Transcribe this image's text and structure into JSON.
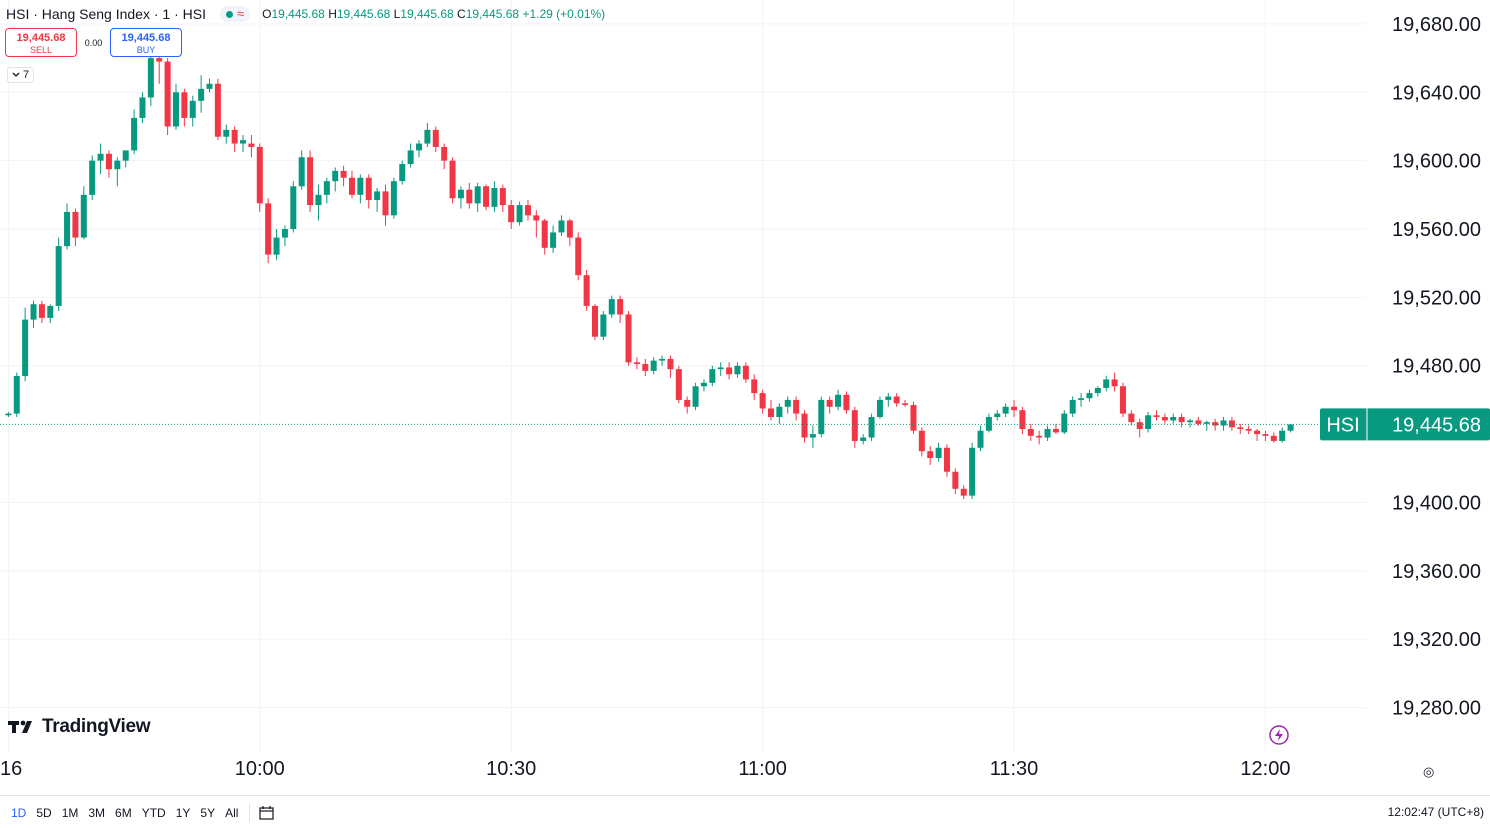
{
  "legend": {
    "title": "HSI · Hang Seng Index · 1 · HSI",
    "wave_icon": "≈",
    "ohlc": {
      "o_label": "O",
      "o": "19,445.68",
      "h_label": "H",
      "h": "19,445.68",
      "l_label": "L",
      "l": "19,445.68",
      "c_label": "C",
      "c": "19,445.68",
      "change": "+1.29 (+0.01%)"
    }
  },
  "trade": {
    "sell_price": "19,445.68",
    "sell_label": "SELL",
    "spread": "0.00",
    "buy_price": "19,445.68",
    "buy_label": "BUY"
  },
  "collapse": {
    "icon": "chevron-down-icon",
    "count": "7"
  },
  "logo": {
    "text": "TradingView"
  },
  "bottom": {
    "ranges": [
      "1D",
      "5D",
      "1M",
      "3M",
      "6M",
      "YTD",
      "1Y",
      "5Y",
      "All"
    ],
    "active_range": "1D",
    "clock": "12:02:47 (UTC+8)"
  },
  "colors": {
    "up": "#089981",
    "down": "#f23645",
    "accent": "#2962ff",
    "grid": "#f0f3fa"
  },
  "chart_data": {
    "type": "candlestick",
    "symbol": "HSI",
    "last_price_label": "19,445.68",
    "last_price": 19445.68,
    "y_ticks": [
      "19,680.00",
      "19,640.00",
      "19,600.00",
      "19,560.00",
      "19,520.00",
      "19,480.00",
      "19,400.00",
      "19,360.00",
      "19,320.00",
      "19,280.00"
    ],
    "y_tick_values": [
      19680,
      19640,
      19600,
      19560,
      19520,
      19480,
      19400,
      19360,
      19320,
      19280
    ],
    "x_ticks": [
      "16",
      "10:00",
      "10:30",
      "11:00",
      "11:30",
      "12:00"
    ],
    "x_tick_minutes": [
      0,
      30,
      60,
      90,
      120,
      150
    ],
    "ylim": [
      19254,
      19694
    ],
    "xlim": [
      -1,
      162
    ],
    "grid": true,
    "candles": [
      [
        0,
        19451,
        19453,
        19450,
        19452
      ],
      [
        1,
        19452,
        19476,
        19450,
        19474
      ],
      [
        2,
        19474,
        19514,
        19471,
        19507
      ],
      [
        3,
        19507,
        19518,
        19502,
        19516
      ],
      [
        4,
        19516,
        19518,
        19505,
        19508
      ],
      [
        5,
        19508,
        19516,
        19505,
        19515
      ],
      [
        6,
        19515,
        19555,
        19512,
        19550
      ],
      [
        7,
        19550,
        19575,
        19548,
        19570
      ],
      [
        8,
        19570,
        19572,
        19550,
        19555
      ],
      [
        9,
        19555,
        19585,
        19554,
        19580
      ],
      [
        10,
        19580,
        19603,
        19577,
        19600
      ],
      [
        11,
        19600,
        19610,
        19592,
        19604
      ],
      [
        12,
        19604,
        19606,
        19590,
        19595
      ],
      [
        13,
        19595,
        19602,
        19585,
        19600
      ],
      [
        14,
        19600,
        19606,
        19596,
        19606
      ],
      [
        15,
        19606,
        19630,
        19604,
        19625
      ],
      [
        16,
        19625,
        19640,
        19622,
        19637
      ],
      [
        17,
        19637,
        19664,
        19632,
        19660
      ],
      [
        18,
        19660,
        19668,
        19645,
        19658
      ],
      [
        19,
        19658,
        19660,
        19615,
        19620
      ],
      [
        20,
        19620,
        19645,
        19618,
        19640
      ],
      [
        21,
        19640,
        19642,
        19620,
        19625
      ],
      [
        22,
        19625,
        19638,
        19620,
        19635
      ],
      [
        23,
        19635,
        19650,
        19628,
        19642
      ],
      [
        24,
        19642,
        19648,
        19640,
        19645
      ],
      [
        25,
        19645,
        19648,
        19612,
        19614
      ],
      [
        26,
        19614,
        19621,
        19610,
        19618
      ],
      [
        27,
        19618,
        19620,
        19605,
        19610
      ],
      [
        28,
        19610,
        19615,
        19605,
        19612
      ],
      [
        29,
        19610,
        19615,
        19602,
        19608
      ],
      [
        30,
        19608,
        19610,
        19570,
        19575
      ],
      [
        31,
        19575,
        19578,
        19540,
        19545
      ],
      [
        32,
        19545,
        19560,
        19542,
        19555
      ],
      [
        33,
        19555,
        19562,
        19550,
        19560
      ],
      [
        34,
        19560,
        19588,
        19558,
        19585
      ],
      [
        35,
        19585,
        19606,
        19583,
        19602
      ],
      [
        36,
        19602,
        19606,
        19570,
        19574
      ],
      [
        37,
        19574,
        19586,
        19565,
        19580
      ],
      [
        38,
        19580,
        19590,
        19575,
        19588
      ],
      [
        39,
        19588,
        19596,
        19582,
        19594
      ],
      [
        40,
        19594,
        19597,
        19585,
        19590
      ],
      [
        41,
        19590,
        19594,
        19578,
        19580
      ],
      [
        42,
        19580,
        19592,
        19575,
        19590
      ],
      [
        43,
        19590,
        19592,
        19572,
        19577
      ],
      [
        44,
        19577,
        19584,
        19570,
        19582
      ],
      [
        45,
        19582,
        19586,
        19562,
        19568
      ],
      [
        46,
        19568,
        19590,
        19566,
        19588
      ],
      [
        47,
        19588,
        19600,
        19586,
        19598
      ],
      [
        48,
        19598,
        19610,
        19596,
        19606
      ],
      [
        49,
        19606,
        19612,
        19602,
        19610
      ],
      [
        50,
        19610,
        19622,
        19608,
        19618
      ],
      [
        51,
        19618,
        19620,
        19605,
        19608
      ],
      [
        52,
        19608,
        19610,
        19595,
        19600
      ],
      [
        53,
        19600,
        19602,
        19575,
        19578
      ],
      [
        54,
        19578,
        19585,
        19572,
        19583
      ],
      [
        55,
        19583,
        19587,
        19572,
        19575
      ],
      [
        56,
        19575,
        19587,
        19570,
        19585
      ],
      [
        57,
        19585,
        19586,
        19571,
        19573
      ],
      [
        58,
        19573,
        19588,
        19570,
        19584
      ],
      [
        59,
        19584,
        19586,
        19570,
        19574
      ],
      [
        60,
        19574,
        19577,
        19560,
        19564
      ],
      [
        61,
        19564,
        19576,
        19562,
        19574
      ],
      [
        62,
        19574,
        19577,
        19565,
        19568
      ],
      [
        63,
        19568,
        19571,
        19555,
        19565
      ],
      [
        64,
        19565,
        19566,
        19545,
        19549
      ],
      [
        65,
        19549,
        19562,
        19546,
        19558
      ],
      [
        66,
        19558,
        19568,
        19556,
        19565
      ],
      [
        67,
        19565,
        19566,
        19550,
        19555
      ],
      [
        68,
        19555,
        19558,
        19530,
        19533
      ],
      [
        69,
        19533,
        19536,
        19512,
        19515
      ],
      [
        70,
        19515,
        19516,
        19495,
        19497
      ],
      [
        71,
        19497,
        19512,
        19495,
        19510
      ],
      [
        72,
        19510,
        19521,
        19508,
        19519
      ],
      [
        73,
        19519,
        19521,
        19505,
        19510
      ],
      [
        74,
        19510,
        19512,
        19480,
        19482
      ],
      [
        75,
        19482,
        19485,
        19478,
        19481
      ],
      [
        76,
        19481,
        19484,
        19474,
        19477
      ],
      [
        77,
        19477,
        19485,
        19475,
        19483
      ],
      [
        78,
        19483,
        19486,
        19480,
        19484
      ],
      [
        79,
        19484,
        19486,
        19473,
        19478
      ],
      [
        80,
        19478,
        19480,
        19458,
        19460
      ],
      [
        81,
        19460,
        19462,
        19452,
        19456
      ],
      [
        82,
        19456,
        19470,
        19454,
        19468
      ],
      [
        83,
        19468,
        19472,
        19465,
        19470
      ],
      [
        84,
        19470,
        19480,
        19468,
        19478
      ],
      [
        85,
        19478,
        19482,
        19474,
        19479
      ],
      [
        86,
        19479,
        19482,
        19472,
        19475
      ],
      [
        87,
        19475,
        19482,
        19473,
        19480
      ],
      [
        88,
        19480,
        19482,
        19470,
        19472
      ],
      [
        89,
        19472,
        19475,
        19460,
        19464
      ],
      [
        90,
        19464,
        19466,
        19452,
        19455
      ],
      [
        91,
        19455,
        19460,
        19448,
        19450
      ],
      [
        92,
        19450,
        19458,
        19446,
        19456
      ],
      [
        93,
        19456,
        19462,
        19452,
        19460
      ],
      [
        94,
        19460,
        19462,
        19448,
        19452
      ],
      [
        95,
        19452,
        19454,
        19435,
        19438
      ],
      [
        96,
        19438,
        19445,
        19432,
        19440
      ],
      [
        97,
        19440,
        19462,
        19438,
        19460
      ],
      [
        98,
        19460,
        19462,
        19452,
        19456
      ],
      [
        99,
        19456,
        19466,
        19454,
        19463
      ],
      [
        100,
        19463,
        19465,
        19452,
        19454
      ],
      [
        101,
        19454,
        19456,
        19432,
        19436
      ],
      [
        102,
        19436,
        19440,
        19434,
        19438
      ],
      [
        103,
        19438,
        19452,
        19436,
        19450
      ],
      [
        104,
        19450,
        19462,
        19449,
        19460
      ],
      [
        105,
        19460,
        19464,
        19456,
        19462
      ],
      [
        106,
        19462,
        19464,
        19456,
        19458
      ],
      [
        107,
        19458,
        19460,
        19456,
        19457
      ],
      [
        108,
        19457,
        19459,
        19440,
        19442
      ],
      [
        109,
        19442,
        19444,
        19427,
        19430
      ],
      [
        110,
        19430,
        19433,
        19422,
        19426
      ],
      [
        111,
        19426,
        19435,
        19424,
        19432
      ],
      [
        112,
        19432,
        19434,
        19415,
        19418
      ],
      [
        113,
        19418,
        19420,
        19405,
        19408
      ],
      [
        114,
        19408,
        19410,
        19402,
        19404
      ],
      [
        115,
        19404,
        19435,
        19402,
        19432
      ],
      [
        116,
        19432,
        19445,
        19430,
        19442
      ],
      [
        117,
        19442,
        19452,
        19441,
        19450
      ],
      [
        118,
        19450,
        19454,
        19448,
        19452
      ],
      [
        119,
        19452,
        19458,
        19450,
        19456
      ],
      [
        120,
        19456,
        19460,
        19450,
        19454
      ],
      [
        121,
        19454,
        19456,
        19440,
        19443
      ],
      [
        122,
        19443,
        19446,
        19436,
        19439
      ],
      [
        123,
        19439,
        19442,
        19434,
        19438
      ],
      [
        124,
        19438,
        19445,
        19436,
        19443
      ],
      [
        125,
        19443,
        19446,
        19440,
        19441
      ],
      [
        126,
        19441,
        19454,
        19440,
        19452
      ],
      [
        127,
        19452,
        19462,
        19450,
        19460
      ],
      [
        128,
        19460,
        19464,
        19456,
        19461
      ],
      [
        129,
        19461,
        19466,
        19459,
        19464
      ],
      [
        130,
        19464,
        19468,
        19462,
        19467
      ],
      [
        131,
        19467,
        19474,
        19465,
        19472
      ],
      [
        132,
        19472,
        19476,
        19465,
        19468
      ],
      [
        133,
        19468,
        19470,
        19450,
        19452
      ],
      [
        134,
        19452,
        19454,
        19445,
        19447
      ],
      [
        135,
        19447,
        19449,
        19438,
        19443
      ],
      [
        136,
        19443,
        19453,
        19441,
        19451
      ],
      [
        137,
        19451,
        19454,
        19448,
        19450
      ],
      [
        138,
        19450,
        19452,
        19446,
        19448
      ],
      [
        139,
        19448,
        19452,
        19446,
        19450
      ],
      [
        140,
        19450,
        19452,
        19444,
        19447
      ],
      [
        141,
        19447,
        19449,
        19444,
        19448
      ],
      [
        142,
        19448,
        19450,
        19445,
        19446
      ],
      [
        143,
        19446,
        19448,
        19442,
        19447
      ],
      [
        144,
        19447,
        19449,
        19442,
        19445
      ],
      [
        145,
        19445,
        19450,
        19442,
        19448
      ],
      [
        146,
        19448,
        19450,
        19442,
        19444
      ],
      [
        147,
        19444,
        19446,
        19440,
        19443
      ],
      [
        148,
        19443,
        19445,
        19440,
        19442
      ],
      [
        149,
        19442,
        19443,
        19436,
        19440
      ],
      [
        150,
        19440,
        19442,
        19436,
        19439
      ],
      [
        151,
        19439,
        19441,
        19435,
        19436
      ],
      [
        152,
        19436,
        19444,
        19435,
        19442
      ],
      [
        153,
        19442,
        19446,
        19441,
        19445.68
      ]
    ]
  }
}
